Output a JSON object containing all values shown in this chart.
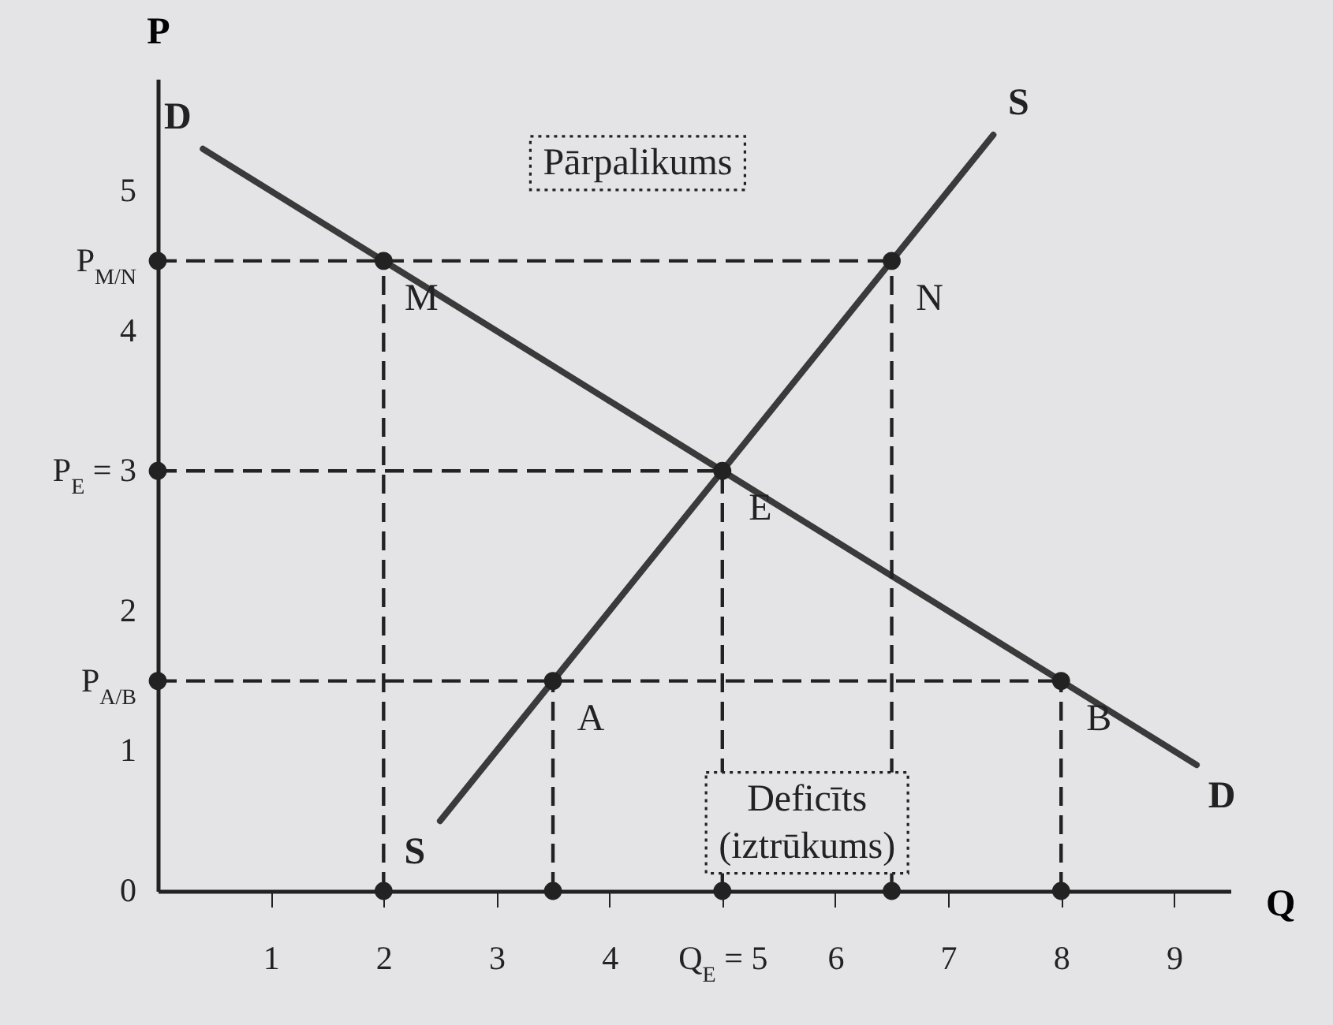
{
  "chart_data": {
    "type": "line",
    "xlabel": "Q",
    "ylabel": "P",
    "xlim": [
      0,
      9.5
    ],
    "ylim": [
      0,
      5.8
    ],
    "xticks": [
      1,
      2,
      3,
      4,
      {
        "value": 5,
        "label": "Q$_{E}$ = 5"
      },
      6,
      7,
      8,
      9
    ],
    "yticks": [
      0,
      1,
      {
        "value": 1.5,
        "label": "P$_{A/B}$"
      },
      2,
      {
        "value": 3,
        "label": "P$_{E}$ = 3"
      },
      4,
      {
        "value": 4.5,
        "label": "P$_{M/N}$"
      },
      5
    ],
    "grid": false,
    "legend": false,
    "series": [
      {
        "name": "D",
        "color": "#3a3a3a",
        "line_style": "solid",
        "x": [
          0.4,
          2,
          5,
          8,
          9.2
        ],
        "values": [
          5.3,
          4.5,
          3,
          1.5,
          0.9
        ]
      },
      {
        "name": "S",
        "color": "#3a3a3a",
        "line_style": "solid",
        "x": [
          2.5,
          3.5,
          5,
          6.5,
          7.4
        ],
        "values": [
          0.5,
          1.5,
          3,
          4.5,
          5.4
        ]
      },
      {
        "color": "#222222",
        "line_style": "dashed",
        "x": [
          0,
          6.5
        ],
        "values": [
          4.5,
          4.5
        ]
      },
      {
        "color": "#222222",
        "line_style": "dashed",
        "x": [
          0,
          5
        ],
        "values": [
          3,
          3
        ]
      },
      {
        "color": "#222222",
        "line_style": "dashed",
        "x": [
          0,
          8
        ],
        "values": [
          1.5,
          1.5
        ]
      },
      {
        "color": "#222222",
        "line_style": "dashed",
        "x": [
          2,
          2
        ],
        "values": [
          0,
          4.5
        ]
      },
      {
        "color": "#222222",
        "line_style": "dashed",
        "x": [
          3.5,
          3.5
        ],
        "values": [
          0,
          1.5
        ]
      },
      {
        "color": "#222222",
        "line_style": "dashed",
        "x": [
          5,
          5
        ],
        "values": [
          0,
          3
        ]
      },
      {
        "color": "#222222",
        "line_style": "dashed",
        "x": [
          6.5,
          6.5
        ],
        "values": [
          0,
          4.5
        ]
      },
      {
        "color": "#222222",
        "line_style": "dashed",
        "x": [
          8,
          8
        ],
        "values": [
          0,
          1.5
        ]
      },
      {
        "type": "scatter",
        "marker": "circle",
        "color": "#222222",
        "x": [
          2,
          6.5,
          5,
          3.5,
          8,
          2,
          3.5,
          5,
          6.5,
          8,
          0,
          0,
          0
        ],
        "values": [
          4.5,
          4.5,
          3,
          1.5,
          1.5,
          0,
          0,
          0,
          0,
          0,
          4.5,
          3,
          1.5
        ]
      }
    ],
    "annotations": [
      {
        "text": "M",
        "x": 2,
        "y": 4.5
      },
      {
        "text": "N",
        "x": 6.5,
        "y": 4.5
      },
      {
        "text": "E",
        "x": 5,
        "y": 3
      },
      {
        "text": "A",
        "x": 3.5,
        "y": 1.5
      },
      {
        "text": "B",
        "x": 8,
        "y": 1.5
      },
      {
        "text": "Pārpalikums",
        "x": 4.25,
        "y": 4.5
      },
      {
        "text": "Deficīts\n(iztrūkums)",
        "x": 5.75,
        "y": 1.5
      }
    ]
  }
}
